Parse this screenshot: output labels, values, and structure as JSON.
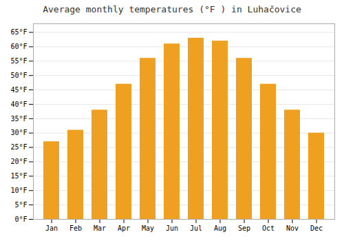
{
  "chart_data": {
    "type": "bar",
    "title": "Average monthly temperatures (°F ) in Luhačovice",
    "categories": [
      "Jan",
      "Feb",
      "Mar",
      "Apr",
      "May",
      "Jun",
      "Jul",
      "Aug",
      "Sep",
      "Oct",
      "Nov",
      "Dec"
    ],
    "values": [
      27,
      31,
      38,
      47,
      56,
      61,
      63,
      62,
      56,
      47,
      38,
      30
    ],
    "color": "#F0A020",
    "ylim": [
      0,
      68
    ],
    "yticks": [
      {
        "value": 0,
        "label": "0°F"
      },
      {
        "value": 5,
        "label": "5°F"
      },
      {
        "value": 10,
        "label": "10°F"
      },
      {
        "value": 15,
        "label": "15°F"
      },
      {
        "value": 20,
        "label": "20°F"
      },
      {
        "value": 25,
        "label": "25°F"
      },
      {
        "value": 30,
        "label": "30°F"
      },
      {
        "value": 35,
        "label": "35°F"
      },
      {
        "value": 40,
        "label": "40°F"
      },
      {
        "value": 45,
        "label": "45°F"
      },
      {
        "value": 50,
        "label": "50°F"
      },
      {
        "value": 55,
        "label": "55°F"
      },
      {
        "value": 60,
        "label": "60°F"
      },
      {
        "value": 65,
        "label": "65°F"
      }
    ],
    "grid": true
  }
}
